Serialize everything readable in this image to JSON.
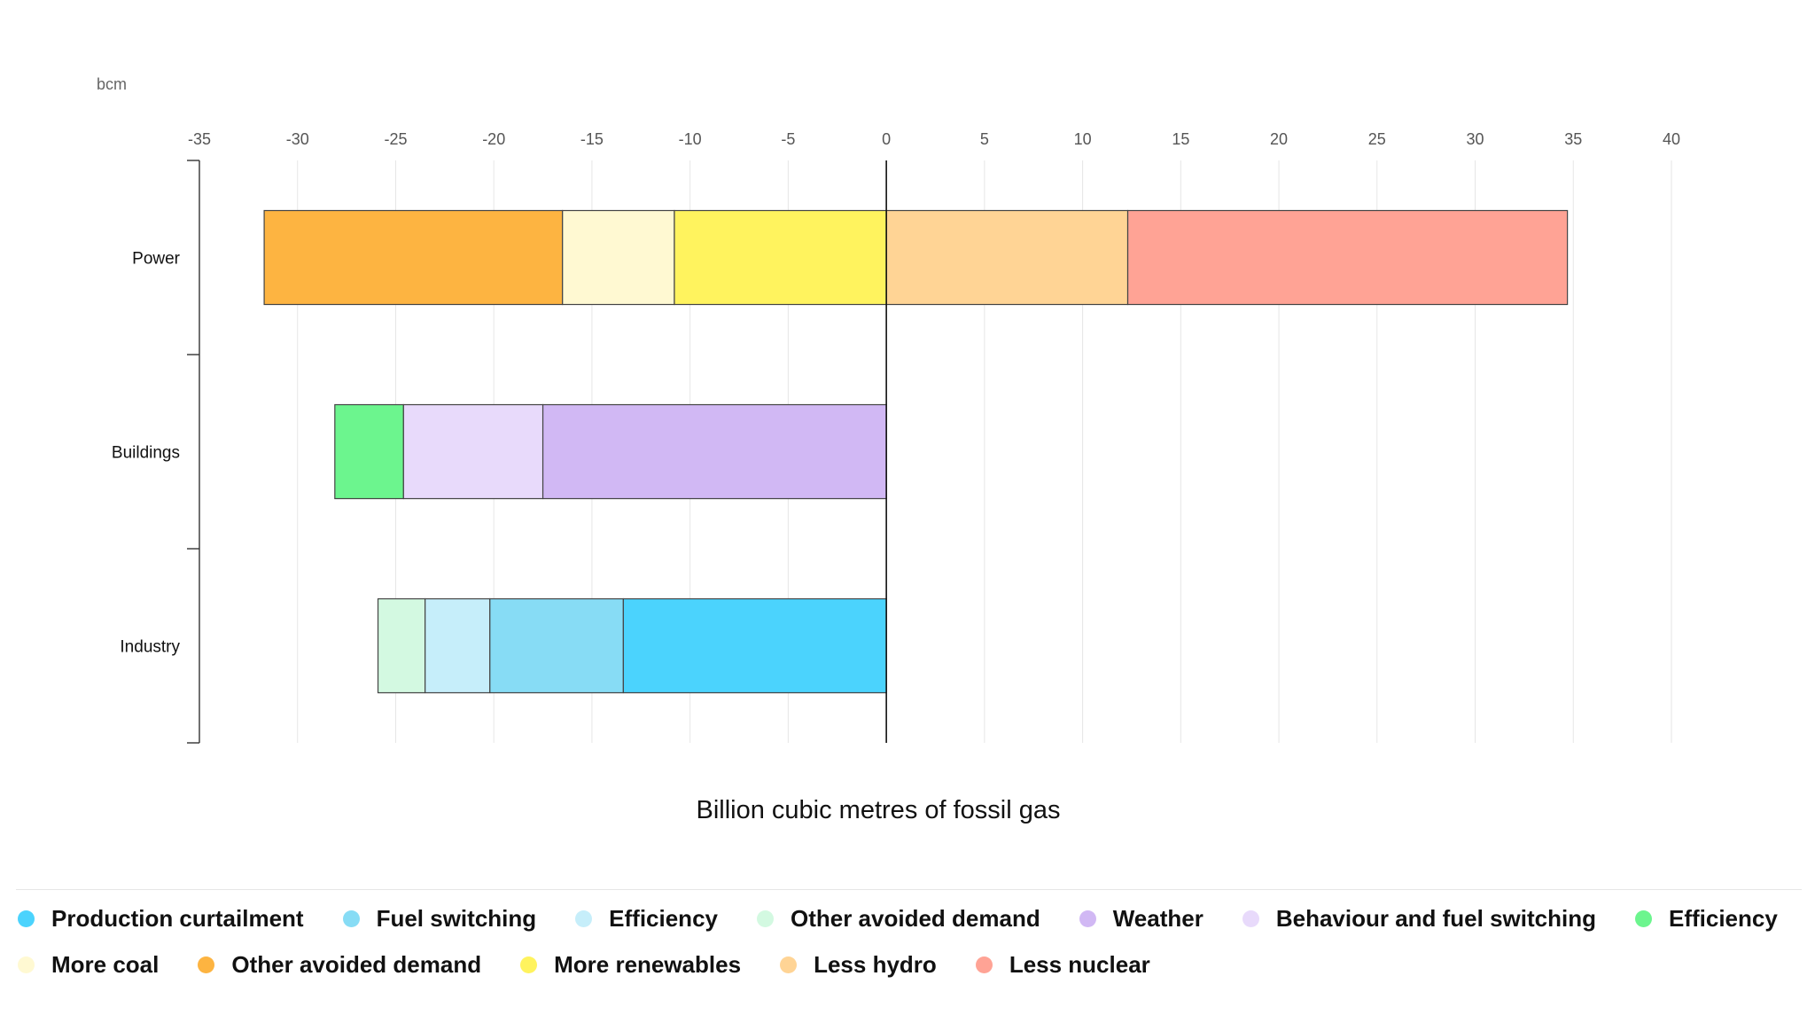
{
  "chart_data": {
    "type": "bar",
    "orientation": "horizontal",
    "stacked": true,
    "unit_label": "bcm",
    "xlabel": "Billion cubic metres of fossil gas",
    "xlim": [
      -35,
      40
    ],
    "xticks": [
      -35,
      -30,
      -25,
      -20,
      -15,
      -10,
      -5,
      0,
      5,
      10,
      15,
      20,
      25,
      30,
      35,
      40
    ],
    "grid": "vertical",
    "categories": [
      "Power",
      "Buildings",
      "Industry"
    ],
    "segments": [
      {
        "category": "Power",
        "name": "Other avoided demand",
        "start": -31.7,
        "end": -16.5,
        "color": "#fdb441"
      },
      {
        "category": "Power",
        "name": "More coal",
        "start": -16.5,
        "end": -10.8,
        "color": "#fff9d2"
      },
      {
        "category": "Power",
        "name": "More renewables",
        "start": -10.8,
        "end": 0,
        "color": "#fff35e"
      },
      {
        "category": "Power",
        "name": "Less hydro",
        "start": 0,
        "end": 12.3,
        "color": "#ffd495"
      },
      {
        "category": "Power",
        "name": "Less nuclear",
        "start": 12.3,
        "end": 34.7,
        "color": "#ffa395"
      },
      {
        "category": "Buildings",
        "name": "Efficiency",
        "start": -28.1,
        "end": -24.6,
        "color": "#6cf58e"
      },
      {
        "category": "Buildings",
        "name": "Behaviour and fuel switching",
        "start": -24.6,
        "end": -17.5,
        "color": "#e8dafb"
      },
      {
        "category": "Buildings",
        "name": "Weather",
        "start": -17.5,
        "end": 0,
        "color": "#d1b8f4"
      },
      {
        "category": "Industry",
        "name": "Other avoided demand",
        "start": -25.9,
        "end": -23.5,
        "color": "#d3f9e1"
      },
      {
        "category": "Industry",
        "name": "Efficiency",
        "start": -23.5,
        "end": -20.2,
        "color": "#c6eefa"
      },
      {
        "category": "Industry",
        "name": "Fuel switching",
        "start": -20.2,
        "end": -13.4,
        "color": "#87dcf5"
      },
      {
        "category": "Industry",
        "name": "Production curtailment",
        "start": -13.4,
        "end": 0,
        "color": "#4bd3fd"
      }
    ],
    "legend": {
      "placement": "bottom",
      "rows": [
        [
          {
            "label": "Production curtailment",
            "color": "#4bd3fd"
          },
          {
            "label": "Fuel switching",
            "color": "#87dcf5"
          },
          {
            "label": "Efficiency",
            "color": "#c6eefa"
          },
          {
            "label": "Other avoided demand",
            "color": "#d3f9e1"
          },
          {
            "label": "Weather",
            "color": "#d1b8f4"
          },
          {
            "label": "Behaviour and fuel switching",
            "color": "#e8dafb"
          },
          {
            "label": "Efficiency",
            "color": "#6cf58e"
          }
        ],
        [
          {
            "label": "More coal",
            "color": "#fff9d2"
          },
          {
            "label": "Other avoided demand",
            "color": "#fdb441"
          },
          {
            "label": "More renewables",
            "color": "#fff35e"
          },
          {
            "label": "Less hydro",
            "color": "#ffd495"
          },
          {
            "label": "Less nuclear",
            "color": "#ffa395"
          }
        ]
      ]
    }
  }
}
